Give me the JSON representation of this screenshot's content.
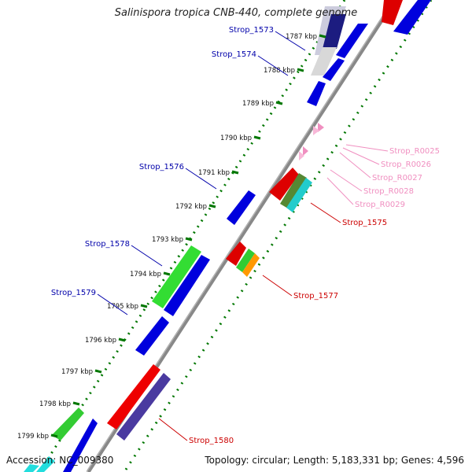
{
  "title": "Salinispora tropica CNB-440, complete genome",
  "accession": "Accession: NC_009380",
  "summary": "Topology: circular; Length: 5,183,331 bp; Genes: 4,596",
  "colors": {
    "dark_blue": "#0000aa",
    "red": "#cc0000",
    "pink": "#f08fc0",
    "ticks": "#007700"
  },
  "ticks": [
    "1787 kbp",
    "1788 kbp",
    "1789 kbp",
    "1790 kbp",
    "1791 kbp",
    "1792 kbp",
    "1793 kbp",
    "1794 kbp",
    "1795 kbp",
    "1796 kbp",
    "1797 kbp",
    "1798 kbp",
    "1799 kbp"
  ],
  "gene_labels": [
    {
      "text": "Strop_1573",
      "color": "#0000aa"
    },
    {
      "text": "Strop_1574",
      "color": "#0000aa"
    },
    {
      "text": "Strop_1576",
      "color": "#0000aa"
    },
    {
      "text": "Strop_1578",
      "color": "#0000aa"
    },
    {
      "text": "Strop_1579",
      "color": "#0000aa"
    },
    {
      "text": "Strop_1575",
      "color": "#cc0000"
    },
    {
      "text": "Strop_1577",
      "color": "#cc0000"
    },
    {
      "text": "Strop_1580",
      "color": "#cc0000"
    },
    {
      "text": "Strop_R0025",
      "color": "#f08fc0"
    },
    {
      "text": "Strop_R0026",
      "color": "#f08fc0"
    },
    {
      "text": "Strop_R0027",
      "color": "#f08fc0"
    },
    {
      "text": "Strop_R0028",
      "color": "#f08fc0"
    },
    {
      "text": "Strop_R0029",
      "color": "#f08fc0"
    }
  ]
}
